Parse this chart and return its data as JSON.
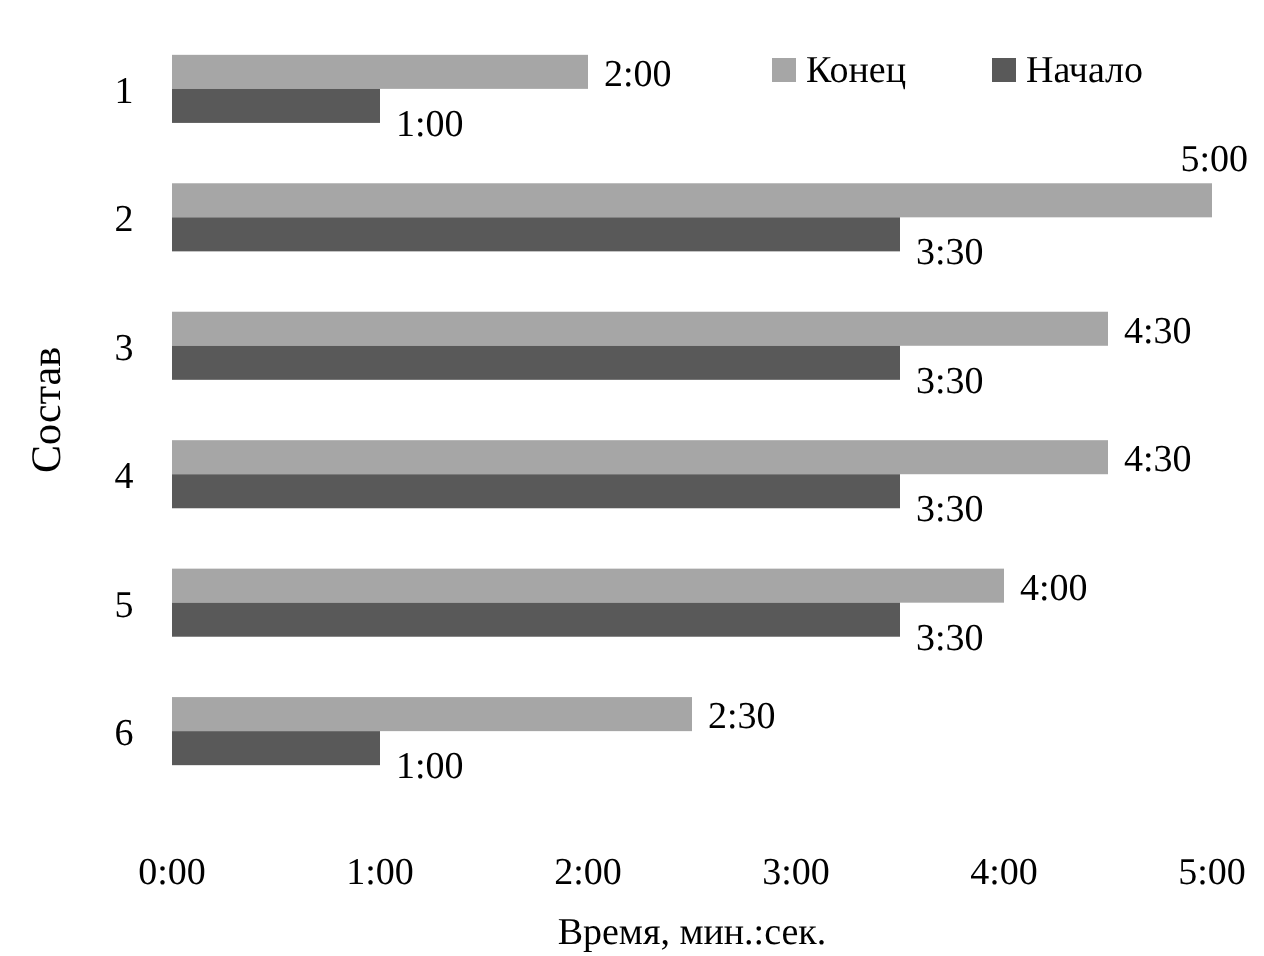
{
  "chart_data": {
    "type": "bar",
    "orientation": "horizontal",
    "xlabel": "Время, мин.:сек.",
    "ylabel": "Состав",
    "categories": [
      "1",
      "2",
      "3",
      "4",
      "5",
      "6"
    ],
    "series": [
      {
        "name": "Конец",
        "color": "#a6a6a6",
        "values": [
          2,
          5,
          4.5,
          4.5,
          4,
          2.5
        ],
        "value_labels": [
          "2:00",
          "5:00",
          "4:30",
          "4:30",
          "4:00",
          "2:30"
        ]
      },
      {
        "name": "Начало",
        "color": "#595959",
        "values": [
          1,
          3.5,
          3.5,
          3.5,
          3.5,
          1
        ],
        "value_labels": [
          "1:00",
          "3:30",
          "3:30",
          "3:30",
          "3:30",
          "1:00"
        ]
      }
    ],
    "xlim": [
      0,
      5
    ],
    "xticks": [
      {
        "value": 0,
        "label": "0:00"
      },
      {
        "value": 1,
        "label": "1:00"
      },
      {
        "value": 2,
        "label": "2:00"
      },
      {
        "value": 3,
        "label": "3:00"
      },
      {
        "value": 4,
        "label": "4:00"
      },
      {
        "value": 5,
        "label": "5:00"
      }
    ],
    "legend": "top right"
  }
}
